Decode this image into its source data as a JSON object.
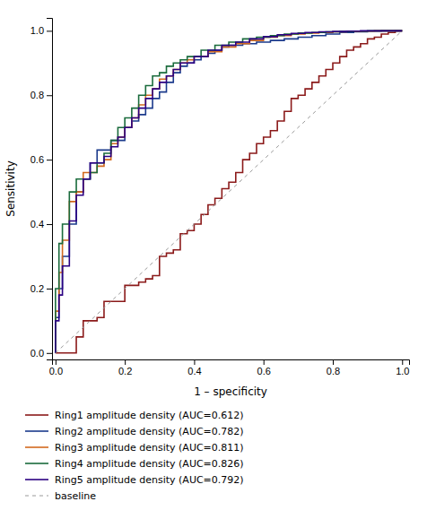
{
  "chart_data": {
    "type": "step",
    "xlabel": "1 – specificity",
    "ylabel": "Sensitivity",
    "xlim": [
      -0.01,
      1.02
    ],
    "ylim": [
      -0.02,
      1.04
    ],
    "xticks": [
      {
        "value": 0.0,
        "label": "0.0"
      },
      0.2,
      0.4,
      0.6,
      0.8,
      {
        "value": 1.0,
        "label": "1.0"
      }
    ],
    "yticks": [
      {
        "value": 0.0,
        "label": "0.0"
      },
      0.2,
      0.4,
      0.6,
      0.8,
      {
        "value": 1.0,
        "label": "1.0"
      }
    ],
    "grid": false,
    "legend": "bottom",
    "series": [
      {
        "name": "Ring1 amplitude density (AUC=0.612)",
        "color": "#8B1A1A",
        "x": [
          0.0,
          0.02,
          0.04,
          0.06,
          0.06,
          0.08,
          0.08,
          0.1,
          0.12,
          0.14,
          0.14,
          0.16,
          0.18,
          0.2,
          0.2,
          0.22,
          0.24,
          0.26,
          0.28,
          0.3,
          0.32,
          0.34,
          0.36,
          0.38,
          0.4,
          0.42,
          0.44,
          0.46,
          0.48,
          0.5,
          0.52,
          0.54,
          0.56,
          0.58,
          0.6,
          0.62,
          0.64,
          0.66,
          0.68,
          0.7,
          0.72,
          0.74,
          0.76,
          0.78,
          0.8,
          0.82,
          0.84,
          0.86,
          0.88,
          0.9,
          0.92,
          0.94,
          0.96,
          0.98,
          1.0
        ],
        "values": [
          0.0,
          0.0,
          0.0,
          0.0,
          0.05,
          0.05,
          0.1,
          0.1,
          0.11,
          0.11,
          0.16,
          0.16,
          0.16,
          0.16,
          0.21,
          0.21,
          0.22,
          0.23,
          0.24,
          0.3,
          0.31,
          0.32,
          0.37,
          0.38,
          0.4,
          0.43,
          0.46,
          0.48,
          0.51,
          0.53,
          0.56,
          0.6,
          0.62,
          0.65,
          0.67,
          0.69,
          0.72,
          0.75,
          0.79,
          0.8,
          0.82,
          0.84,
          0.86,
          0.88,
          0.9,
          0.92,
          0.94,
          0.95,
          0.96,
          0.975,
          0.98,
          0.99,
          0.995,
          1.0,
          1.0
        ]
      },
      {
        "name": "Ring2 amplitude density (AUC=0.782)",
        "color": "#1B3A8C",
        "x": [
          0.0,
          0.0,
          0.01,
          0.01,
          0.02,
          0.02,
          0.04,
          0.04,
          0.06,
          0.06,
          0.08,
          0.08,
          0.1,
          0.1,
          0.12,
          0.12,
          0.14,
          0.16,
          0.16,
          0.18,
          0.2,
          0.22,
          0.24,
          0.26,
          0.28,
          0.3,
          0.32,
          0.34,
          0.36,
          0.38,
          0.4,
          0.42,
          0.44,
          0.46,
          0.48,
          0.5,
          0.54,
          0.58,
          0.62,
          0.66,
          0.7,
          0.74,
          0.78,
          0.82,
          0.86,
          0.9,
          0.94,
          0.98,
          1.0
        ],
        "values": [
          0.0,
          0.11,
          0.11,
          0.2,
          0.2,
          0.3,
          0.3,
          0.4,
          0.4,
          0.5,
          0.5,
          0.54,
          0.54,
          0.59,
          0.59,
          0.63,
          0.63,
          0.63,
          0.66,
          0.66,
          0.7,
          0.72,
          0.74,
          0.76,
          0.79,
          0.81,
          0.84,
          0.87,
          0.89,
          0.9,
          0.91,
          0.92,
          0.93,
          0.94,
          0.95,
          0.955,
          0.96,
          0.965,
          0.97,
          0.975,
          0.98,
          0.985,
          0.99,
          0.995,
          0.997,
          0.999,
          1.0,
          1.0,
          1.0
        ]
      },
      {
        "name": "Ring3 amplitude density (AUC=0.811)",
        "color": "#D2691E",
        "x": [
          0.0,
          0.0,
          0.01,
          0.01,
          0.02,
          0.02,
          0.04,
          0.04,
          0.06,
          0.06,
          0.08,
          0.08,
          0.1,
          0.12,
          0.14,
          0.16,
          0.18,
          0.2,
          0.22,
          0.24,
          0.26,
          0.28,
          0.3,
          0.32,
          0.34,
          0.36,
          0.38,
          0.4,
          0.44,
          0.48,
          0.52,
          0.56,
          0.6,
          0.64,
          0.68,
          0.72,
          0.76,
          0.8,
          0.84,
          0.88,
          0.92,
          0.96,
          1.0
        ],
        "values": [
          0.0,
          0.13,
          0.13,
          0.25,
          0.25,
          0.35,
          0.35,
          0.47,
          0.47,
          0.5,
          0.5,
          0.56,
          0.56,
          0.58,
          0.6,
          0.65,
          0.67,
          0.7,
          0.73,
          0.77,
          0.8,
          0.82,
          0.85,
          0.86,
          0.88,
          0.9,
          0.91,
          0.92,
          0.935,
          0.95,
          0.96,
          0.97,
          0.98,
          0.985,
          0.99,
          0.993,
          0.995,
          0.997,
          0.998,
          0.999,
          1.0,
          1.0,
          1.0
        ]
      },
      {
        "name": "Ring4 amplitude density (AUC=0.826)",
        "color": "#1A6B3C",
        "x": [
          0.0,
          0.0,
          0.01,
          0.01,
          0.02,
          0.02,
          0.04,
          0.04,
          0.06,
          0.06,
          0.08,
          0.1,
          0.12,
          0.14,
          0.16,
          0.18,
          0.2,
          0.22,
          0.24,
          0.26,
          0.28,
          0.3,
          0.32,
          0.34,
          0.36,
          0.38,
          0.42,
          0.46,
          0.5,
          0.54,
          0.58,
          0.62,
          0.66,
          0.7,
          0.74,
          0.78,
          0.82,
          0.86,
          0.9,
          0.94,
          0.98,
          1.0
        ],
        "values": [
          0.0,
          0.2,
          0.2,
          0.34,
          0.34,
          0.4,
          0.4,
          0.5,
          0.5,
          0.54,
          0.54,
          0.56,
          0.59,
          0.62,
          0.66,
          0.7,
          0.73,
          0.76,
          0.8,
          0.83,
          0.86,
          0.87,
          0.89,
          0.9,
          0.91,
          0.92,
          0.94,
          0.955,
          0.965,
          0.975,
          0.98,
          0.985,
          0.99,
          0.993,
          0.995,
          0.997,
          0.998,
          0.999,
          1.0,
          1.0,
          1.0,
          1.0
        ]
      },
      {
        "name": "Ring5 amplitude density (AUC=0.792)",
        "color": "#2B0082",
        "x": [
          0.0,
          0.0,
          0.01,
          0.01,
          0.02,
          0.02,
          0.04,
          0.04,
          0.06,
          0.06,
          0.08,
          0.08,
          0.1,
          0.1,
          0.12,
          0.14,
          0.16,
          0.18,
          0.2,
          0.22,
          0.24,
          0.26,
          0.28,
          0.3,
          0.32,
          0.34,
          0.36,
          0.4,
          0.44,
          0.48,
          0.52,
          0.56,
          0.6,
          0.64,
          0.68,
          0.72,
          0.76,
          0.8,
          0.84,
          0.88,
          0.92,
          0.96,
          1.0
        ],
        "values": [
          0.0,
          0.1,
          0.1,
          0.18,
          0.18,
          0.27,
          0.27,
          0.41,
          0.41,
          0.49,
          0.49,
          0.54,
          0.54,
          0.59,
          0.59,
          0.61,
          0.64,
          0.67,
          0.7,
          0.73,
          0.76,
          0.79,
          0.82,
          0.84,
          0.86,
          0.88,
          0.9,
          0.92,
          0.94,
          0.955,
          0.965,
          0.975,
          0.982,
          0.988,
          0.992,
          0.995,
          0.997,
          0.998,
          0.999,
          1.0,
          1.0,
          1.0,
          1.0
        ]
      },
      {
        "name": "baseline",
        "color": "#999999",
        "type": "line",
        "line_style": "dashed",
        "x": [
          0,
          1
        ],
        "values": [
          0,
          1
        ]
      }
    ]
  }
}
